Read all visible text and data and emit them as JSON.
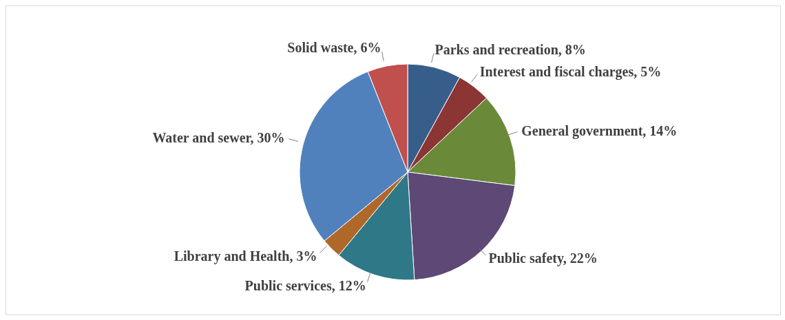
{
  "chart_data": {
    "type": "pie",
    "categories": [
      "Parks and recreation",
      "Interest and fiscal charges",
      "General government",
      "Public safety",
      "Public services",
      "Library and Health",
      "Water and sewer",
      "Solid waste"
    ],
    "values": [
      8,
      5,
      14,
      22,
      12,
      3,
      30,
      6
    ],
    "value_labels": [
      "8%",
      "5%",
      "14%",
      "22%",
      "12%",
      "3%",
      "30%",
      "6%"
    ],
    "colors": [
      "#375d8a",
      "#8b3535",
      "#6a8a3a",
      "#5d4876",
      "#2e7888",
      "#b0682a",
      "#5081bd",
      "#c0504d"
    ]
  }
}
